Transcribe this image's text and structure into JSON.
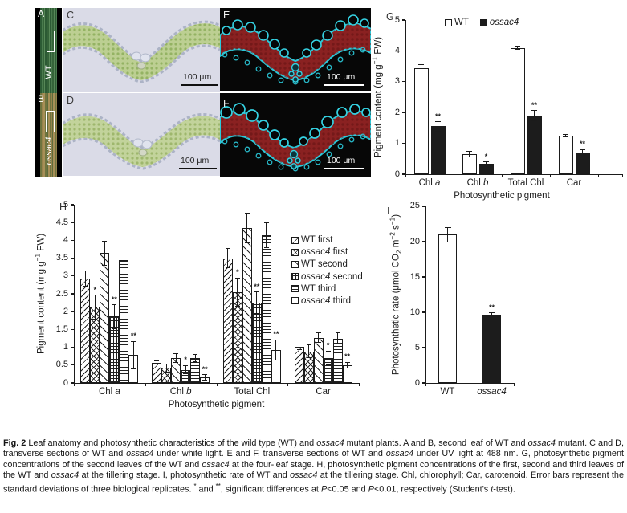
{
  "figure": {
    "panels": {
      "A": {
        "label": "A",
        "side_label": "WT"
      },
      "B": {
        "label": "B",
        "side_label": "ossac4"
      },
      "C": {
        "label": "C",
        "scale_bar": "100 μm"
      },
      "D": {
        "label": "D",
        "scale_bar": "100 μm"
      },
      "E": {
        "label": "E",
        "scale_bar": "100 μm"
      },
      "F": {
        "label": "F",
        "scale_bar": "100 μm"
      }
    }
  },
  "colors": {
    "wt_bar_fill": "#ffffff",
    "mutant_bar_fill": "#1c1c1c",
    "axis": "#1b1b1b",
    "white_light_tissue_green": "#bccf92",
    "uv_tissue_red": "#8a2121",
    "uv_cell_wall_cyan": "#2bc9da",
    "wt_leaf_green": "#3f6b44",
    "mutant_leaf_olive": "#8a7a4a"
  },
  "chart_data": [
    {
      "id": "G",
      "type": "bar",
      "panel_label": "G",
      "ylabel_runs": [
        {
          "t": "Pigment content (mg g"
        },
        {
          "t": "−1",
          "sup": true
        },
        {
          "t": " FW)"
        }
      ],
      "xlabel": "Photosynthetic pigment",
      "ylim": [
        0,
        5
      ],
      "yticks": [
        "0",
        "1",
        "2",
        "3",
        "4",
        "5"
      ],
      "grid": false,
      "legend_position": "top-center",
      "categories": [
        [
          {
            "t": "Chl "
          },
          {
            "t": "a",
            "i": true
          }
        ],
        [
          {
            "t": "Chl "
          },
          {
            "t": "b",
            "i": true
          }
        ],
        [
          {
            "t": "Total Chl"
          }
        ],
        [
          {
            "t": "Car"
          }
        ]
      ],
      "series": [
        {
          "name_runs": [
            {
              "t": "WT"
            }
          ],
          "pattern": "solid-white",
          "values": [
            3.45,
            0.65,
            4.1,
            1.25
          ],
          "errors": [
            0.1,
            0.08,
            0.05,
            0.04
          ],
          "sig": [
            "",
            "",
            "",
            ""
          ]
        },
        {
          "name_runs": [
            {
              "t": "ossac4",
              "i": true
            }
          ],
          "pattern": "solid-black",
          "values": [
            1.55,
            0.35,
            1.9,
            0.7
          ],
          "errors": [
            0.15,
            0.05,
            0.16,
            0.1
          ],
          "sig": [
            "**",
            "*",
            "**",
            "**"
          ]
        }
      ]
    },
    {
      "id": "H",
      "type": "bar",
      "panel_label": "H",
      "ylabel_runs": [
        {
          "t": "Pigment content (mg g"
        },
        {
          "t": "−1",
          "sup": true
        },
        {
          "t": " FW)"
        }
      ],
      "xlabel": "Photosynthetic pigment",
      "ylim": [
        0,
        5
      ],
      "yticks": [
        "0",
        "0.5",
        "1",
        "1.5",
        "2",
        "2.5",
        "3",
        "3.5",
        "4",
        "4.5",
        "5"
      ],
      "grid": false,
      "legend_position": "right-middle",
      "categories": [
        [
          {
            "t": "Chl "
          },
          {
            "t": "a",
            "i": true
          }
        ],
        [
          {
            "t": "Chl "
          },
          {
            "t": "b",
            "i": true
          }
        ],
        [
          {
            "t": "Total Chl"
          }
        ],
        [
          {
            "t": "Car"
          }
        ]
      ],
      "series": [
        {
          "name_runs": [
            {
              "t": "WT first"
            }
          ],
          "pattern": "diag-up",
          "values": [
            2.93,
            0.57,
            3.5,
            1.02
          ],
          "errors": [
            0.22,
            0.05,
            0.27,
            0.08
          ],
          "sig": [
            "",
            "",
            "",
            ""
          ]
        },
        {
          "name_runs": [
            {
              "t": "ossac4",
              "i": true
            },
            {
              "t": " first"
            }
          ],
          "pattern": "cross",
          "values": [
            2.13,
            0.42,
            2.55,
            0.88
          ],
          "errors": [
            0.33,
            0.12,
            0.4,
            0.18
          ],
          "sig": [
            "*",
            "",
            "*",
            ""
          ]
        },
        {
          "name_runs": [
            {
              "t": "WT second"
            }
          ],
          "pattern": "diag-down",
          "values": [
            3.64,
            0.7,
            4.35,
            1.27
          ],
          "errors": [
            0.34,
            0.12,
            0.42,
            0.13
          ],
          "sig": [
            "",
            "",
            "",
            ""
          ]
        },
        {
          "name_runs": [
            {
              "t": "ossac4",
              "i": true
            },
            {
              "t": " second"
            }
          ],
          "pattern": "grid",
          "values": [
            1.86,
            0.37,
            2.25,
            0.7
          ],
          "errors": [
            0.33,
            0.12,
            0.3,
            0.2
          ],
          "sig": [
            "**",
            "*",
            "**",
            "*"
          ]
        },
        {
          "name_runs": [
            {
              "t": "WT third"
            }
          ],
          "pattern": "horiz",
          "values": [
            3.44,
            0.7,
            4.15,
            1.25
          ],
          "errors": [
            0.41,
            0.1,
            0.35,
            0.15
          ],
          "sig": [
            "",
            "",
            "",
            ""
          ]
        },
        {
          "name_runs": [
            {
              "t": "ossac4",
              "i": true
            },
            {
              "t": " third"
            }
          ],
          "pattern": "solid-white",
          "values": [
            0.78,
            0.16,
            0.93,
            0.5
          ],
          "errors": [
            0.38,
            0.07,
            0.28,
            0.08
          ],
          "sig": [
            "**",
            "**",
            "**",
            "**"
          ]
        }
      ]
    },
    {
      "id": "I",
      "type": "bar",
      "panel_label": "I",
      "ylabel_runs": [
        {
          "t": "Photosynthetic rate (μmol CO"
        },
        {
          "t": "2",
          "sub": true
        },
        {
          "t": " m"
        },
        {
          "t": "−2",
          "sup": true
        },
        {
          "t": " s"
        },
        {
          "t": "−1",
          "sup": true
        },
        {
          "t": ")"
        }
      ],
      "xlabel": "",
      "ylim": [
        0,
        25
      ],
      "yticks": [
        "0",
        "5",
        "10",
        "15",
        "20",
        "25"
      ],
      "grid": false,
      "legend_position": "none",
      "categories": [
        [
          {
            "t": "WT"
          }
        ],
        [
          {
            "t": "ossac4",
            "i": true
          }
        ]
      ],
      "series": [
        {
          "name_runs": [
            {
              "t": ""
            }
          ],
          "patterns": [
            "solid-white",
            "solid-black"
          ],
          "values": [
            21,
            9.7
          ],
          "errors": [
            1.0,
            0.2
          ],
          "sig": [
            "",
            "**"
          ]
        }
      ]
    }
  ],
  "caption": {
    "runs": [
      {
        "t": "Fig. 2",
        "b": true
      },
      {
        "t": " Leaf anatomy and photosynthetic characteristics of the wild type (WT) and "
      },
      {
        "t": "ossac4",
        "i": true
      },
      {
        "t": " mutant plants.  A and B, second leaf of WT and "
      },
      {
        "t": "ossac4",
        "i": true
      },
      {
        "t": " mutant.  C and D, transverse sections of WT and "
      },
      {
        "t": "ossac4",
        "i": true
      },
      {
        "t": " under white light.  E and F, transverse sections of WT and "
      },
      {
        "t": "ossac4",
        "i": true
      },
      {
        "t": " under UV light at 488 nm.  G, photosynthetic pigment concentrations of the second leaves of the WT and "
      },
      {
        "t": "ossac4",
        "i": true
      },
      {
        "t": " at the four-leaf stage.  H, photosynthetic pigment concentrations of the first, second and third leaves of the WT and "
      },
      {
        "t": "ossac4",
        "i": true
      },
      {
        "t": " at the tillering stage.  I, photosynthetic rate of WT and "
      },
      {
        "t": "ossac4",
        "i": true
      },
      {
        "t": " at the tillering stage.  Chl, chlorophyll; Car, carotenoid.  Error bars represent the standard deviations of three biological replicates.  "
      },
      {
        "t": "*",
        "sup": true
      },
      {
        "t": " and "
      },
      {
        "t": "**",
        "sup": true
      },
      {
        "t": ", significant differences at "
      },
      {
        "t": "P",
        "i": true
      },
      {
        "t": "<0.05 and "
      },
      {
        "t": "P",
        "i": true
      },
      {
        "t": "<0.01, respectively (Student's "
      },
      {
        "t": "t",
        "i": true
      },
      {
        "t": "-test)."
      }
    ]
  }
}
